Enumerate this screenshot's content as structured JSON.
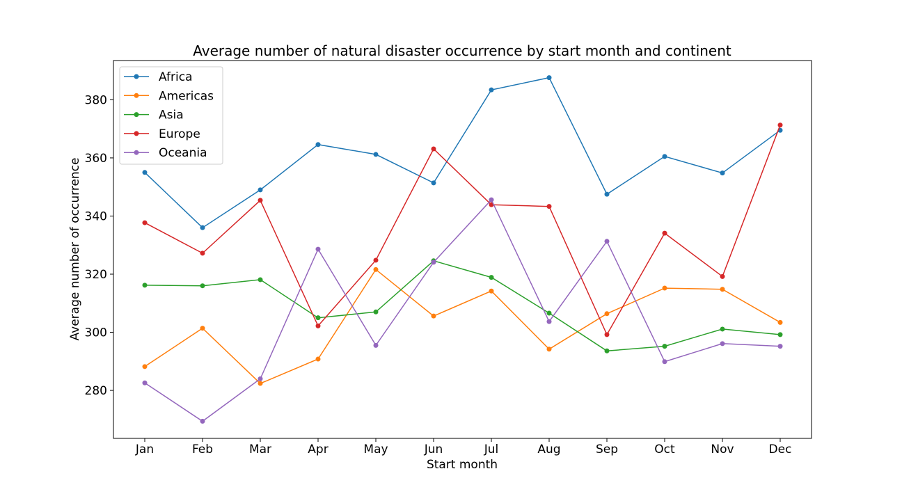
{
  "chart_data": {
    "type": "line",
    "title": "Average number of natural disaster occurrence by start month and continent",
    "xlabel": "Start month",
    "ylabel": "Average number of occurrence",
    "categories": [
      "Jan",
      "Feb",
      "Mar",
      "Apr",
      "May",
      "Jun",
      "Jul",
      "Aug",
      "Sep",
      "Oct",
      "Nov",
      "Dec"
    ],
    "ylim": [
      263.5,
      393.5
    ],
    "yticks": [
      280,
      300,
      320,
      340,
      360,
      380
    ],
    "grid": false,
    "legend_position": "upper-left",
    "series": [
      {
        "name": "Africa",
        "color": "#1f77b4",
        "values": [
          355,
          336,
          349,
          364.6,
          361.2,
          351.4,
          383.4,
          387.6,
          347.5,
          360.5,
          354.8,
          369.5
        ]
      },
      {
        "name": "Americas",
        "color": "#ff7f0e",
        "values": [
          288.2,
          301.4,
          282.4,
          290.8,
          321.6,
          305.6,
          314.2,
          294.2,
          306.4,
          315.2,
          314.8,
          303.4
        ]
      },
      {
        "name": "Asia",
        "color": "#2ca02c",
        "values": [
          316.2,
          316,
          318.1,
          305,
          307,
          324.6,
          318.9,
          306.6,
          293.6,
          295.2,
          301.1,
          299.2
        ]
      },
      {
        "name": "Europe",
        "color": "#d62728",
        "values": [
          337.7,
          327.2,
          345.4,
          302.2,
          324.8,
          363.1,
          343.9,
          343.3,
          299.2,
          334.1,
          319.2,
          371.3
        ]
      },
      {
        "name": "Oceania",
        "color": "#9467bd",
        "values": [
          282.6,
          269.4,
          284.0,
          328.6,
          295.5,
          324.1,
          345.6,
          303.7,
          331.3,
          289.9,
          296.1,
          295.2
        ]
      }
    ]
  }
}
